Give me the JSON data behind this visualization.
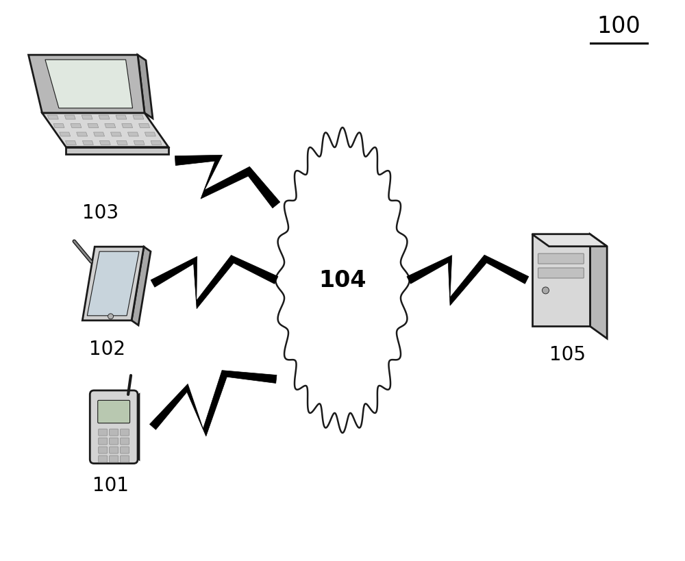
{
  "background_color": "#ffffff",
  "label_100": "100",
  "label_101": "101",
  "label_102": "102",
  "label_103": "103",
  "label_104": "104",
  "label_105": "105",
  "cloud_color": "#ffffff",
  "cloud_outline_color": "#1a1a1a",
  "font_size_labels": 20,
  "font_size_100": 24
}
